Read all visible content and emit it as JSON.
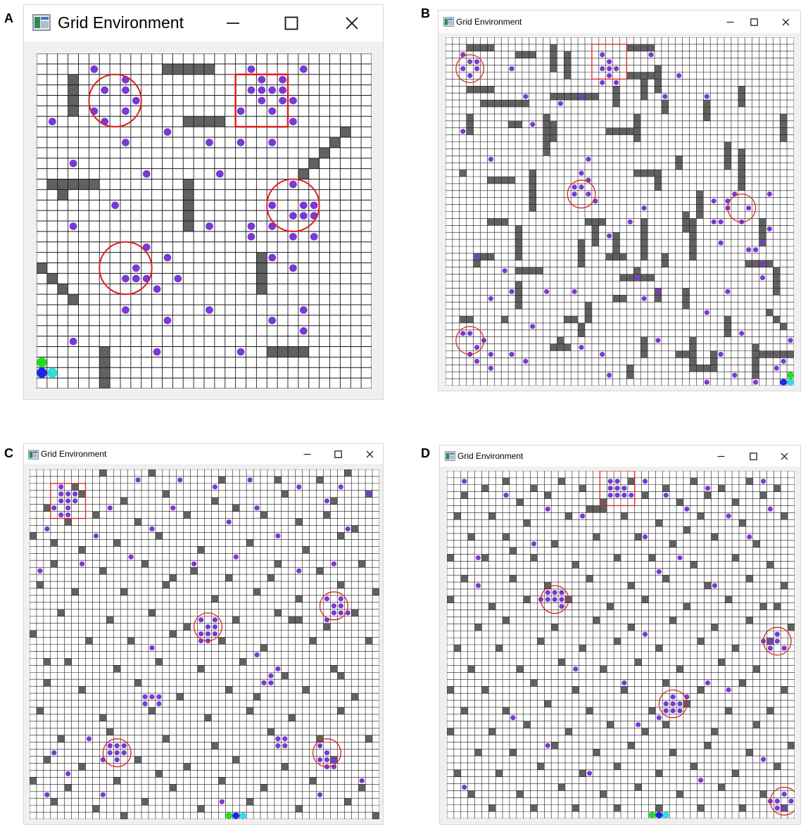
{
  "panels": [
    {
      "letter": "A",
      "title": "Grid Environment",
      "n": 32
    },
    {
      "letter": "B",
      "title": "Grid Environment",
      "n": 50
    },
    {
      "letter": "C",
      "title": "Grid Environment",
      "n": 50
    },
    {
      "letter": "D",
      "title": "Grid Environment",
      "n": 50
    }
  ],
  "icons": {
    "app": "grid-app-icon",
    "minimize": "minimize-icon",
    "maximize": "maximize-icon",
    "close": "close-icon"
  },
  "colors": {
    "obstacle": "#616161",
    "target": "#7a38d6",
    "highlight": "#e02020",
    "agent_green": "#22dd22",
    "agent_blue": "#1a28ee",
    "agent_cyan": "#33dddd",
    "grid_line": "#1a1a1a"
  }
}
